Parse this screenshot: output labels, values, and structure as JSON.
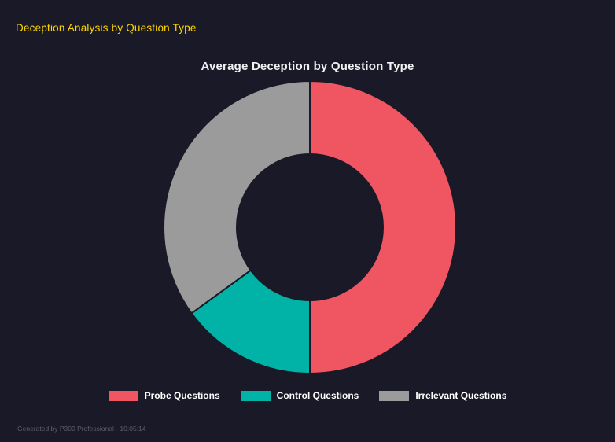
{
  "page": {
    "header_title": "Deception Analysis by Question Type",
    "footer": "Generated by P300 Professional - 10:05:14"
  },
  "chart_data": {
    "type": "pie",
    "subtype": "donut",
    "title": "Average Deception by Question Type",
    "categories": [
      "Probe Questions",
      "Control Questions",
      "Irrelevant Questions"
    ],
    "values": [
      50,
      15,
      35
    ],
    "values_note": "estimated percent of circle; no numeric data labels shown",
    "colors": [
      "#ef5662",
      "#00b3a6",
      "#9b9b9b"
    ],
    "legend_position": "bottom",
    "donut_hole_ratio": 0.5,
    "rotation_start": "top",
    "direction": "clockwise"
  },
  "colors": {
    "background": "#191927",
    "header_text": "#ffd700",
    "chart_title": "#f2f2f5",
    "legend_text": "#ffffff",
    "footer_text": "#5e5e6b"
  }
}
